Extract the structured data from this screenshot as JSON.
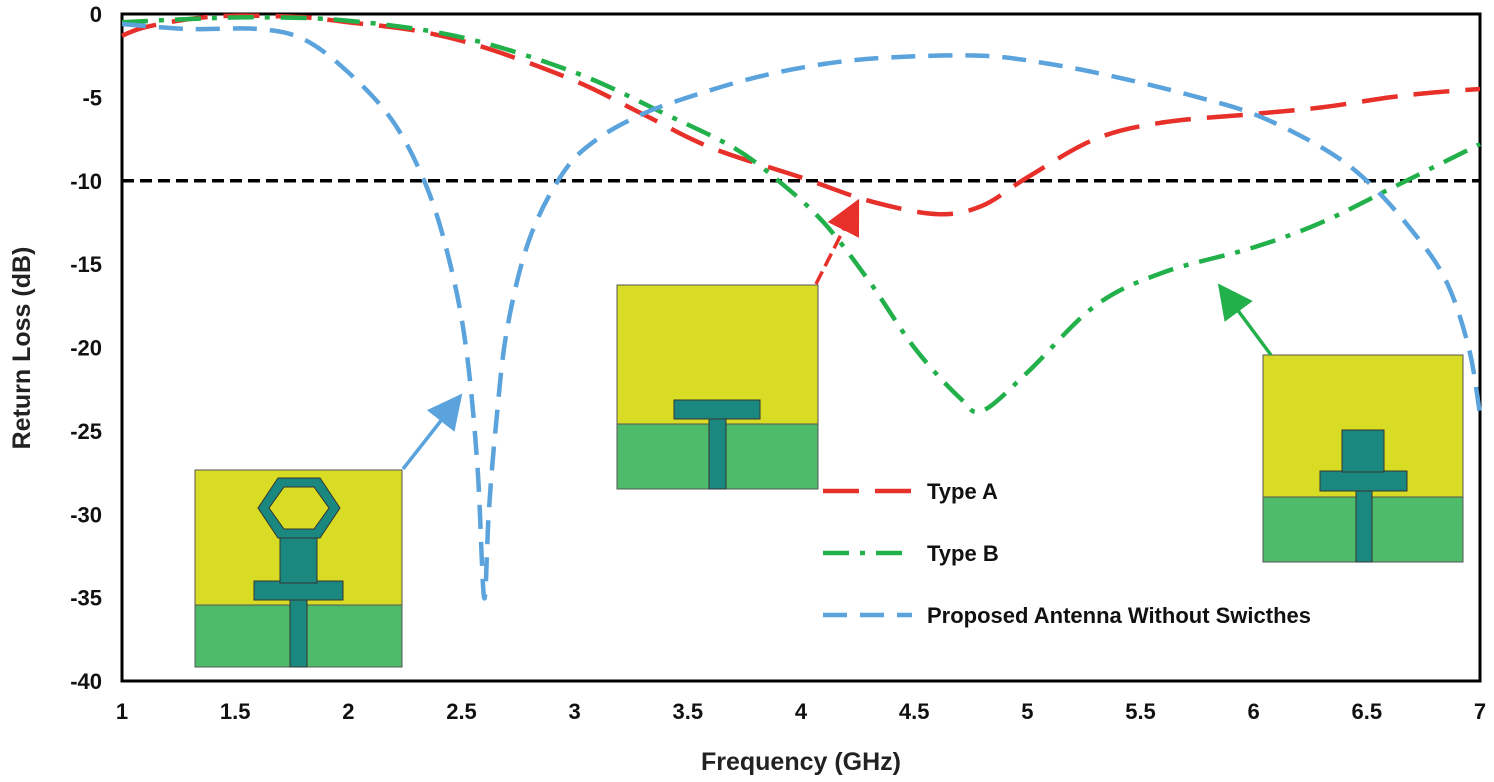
{
  "chart_data": {
    "type": "line",
    "title": "",
    "xlabel": "Frequency (GHz)",
    "ylabel": "Return Loss (dB)",
    "xlim": [
      1,
      7
    ],
    "ylim": [
      -40,
      0
    ],
    "x_ticks": [
      "1",
      "1.5",
      "2",
      "2.5",
      "3",
      "3.5",
      "4",
      "4.5",
      "5",
      "5.5",
      "6",
      "6.5",
      "7"
    ],
    "y_ticks": [
      "0",
      "-5",
      "-10",
      "-15",
      "-20",
      "-25",
      "-30",
      "-35",
      "-40"
    ],
    "grid": false,
    "legend_position": "lower-right",
    "reference_line": {
      "y": -10,
      "style": "dashed",
      "color": "#000000"
    },
    "series": [
      {
        "name": "Type A",
        "color": "#e8302a",
        "style": "long-dash",
        "x": [
          1.0,
          1.1,
          1.3,
          1.5,
          1.8,
          2.0,
          2.3,
          2.6,
          3.0,
          3.3,
          3.6,
          4.0,
          4.3,
          4.6,
          4.8,
          5.0,
          5.3,
          5.6,
          6.0,
          6.3,
          6.6,
          6.8,
          7.0
        ],
        "y": [
          -1.3,
          -0.8,
          -0.3,
          -0.1,
          -0.2,
          -0.5,
          -1.0,
          -2.0,
          -4.0,
          -6.0,
          -8.0,
          -9.8,
          -11.2,
          -12.0,
          -11.5,
          -9.8,
          -7.5,
          -6.5,
          -6.0,
          -5.6,
          -5.0,
          -4.7,
          -4.5
        ]
      },
      {
        "name": "Type B",
        "color": "#22b04b",
        "style": "dash-dot",
        "x": [
          1.0,
          1.3,
          1.6,
          2.0,
          2.5,
          3.0,
          3.4,
          3.7,
          3.9,
          4.1,
          4.3,
          4.5,
          4.7,
          4.8,
          5.0,
          5.3,
          5.6,
          6.0,
          6.3,
          6.6,
          7.0
        ],
        "y": [
          -0.5,
          -0.3,
          -0.2,
          -0.4,
          -1.4,
          -3.5,
          -6.0,
          -8.0,
          -10.0,
          -12.5,
          -16.0,
          -20.0,
          -23.0,
          -23.8,
          -21.5,
          -17.5,
          -15.5,
          -14.0,
          -12.5,
          -10.5,
          -7.8
        ]
      },
      {
        "name": "Proposed Antenna Without Swicthes",
        "color": "#5ba3dc",
        "style": "dash",
        "x": [
          1.0,
          1.3,
          1.6,
          1.8,
          2.0,
          2.2,
          2.35,
          2.45,
          2.52,
          2.57,
          2.6,
          2.62,
          2.65,
          2.7,
          2.8,
          2.95,
          3.1,
          3.3,
          3.5,
          3.8,
          4.1,
          4.4,
          4.8,
          5.1,
          5.4,
          5.7,
          6.0,
          6.3,
          6.5,
          6.7,
          6.85,
          6.95,
          7.0
        ],
        "y": [
          -0.6,
          -0.9,
          -0.9,
          -1.5,
          -3.5,
          -6.5,
          -10.5,
          -15.0,
          -20.0,
          -27.0,
          -35.0,
          -30.0,
          -25.0,
          -19.0,
          -13.5,
          -9.5,
          -7.5,
          -6.0,
          -5.0,
          -3.8,
          -3.0,
          -2.6,
          -2.5,
          -3.0,
          -3.8,
          -4.8,
          -6.0,
          -8.0,
          -10.0,
          -13.0,
          -16.0,
          -20.0,
          -24.0
        ]
      }
    ],
    "annotations": [
      {
        "label": "Type A geometry inset",
        "arrow_target": {
          "x": 4.25,
          "y": -11
        }
      },
      {
        "label": "Type B geometry inset",
        "arrow_target": {
          "x": 5.85,
          "y": -15.8
        }
      },
      {
        "label": "Proposed antenna geometry inset",
        "arrow_target": {
          "x": 2.52,
          "y": -23
        }
      }
    ]
  },
  "colors": {
    "substrate_yellow": "#d9dc24",
    "ground_green": "#4dbb6a",
    "patch_teal": "#1b8880",
    "arrow_red": "#e8302a",
    "arrow_green": "#22b04b",
    "arrow_blue": "#5ba3dc"
  }
}
